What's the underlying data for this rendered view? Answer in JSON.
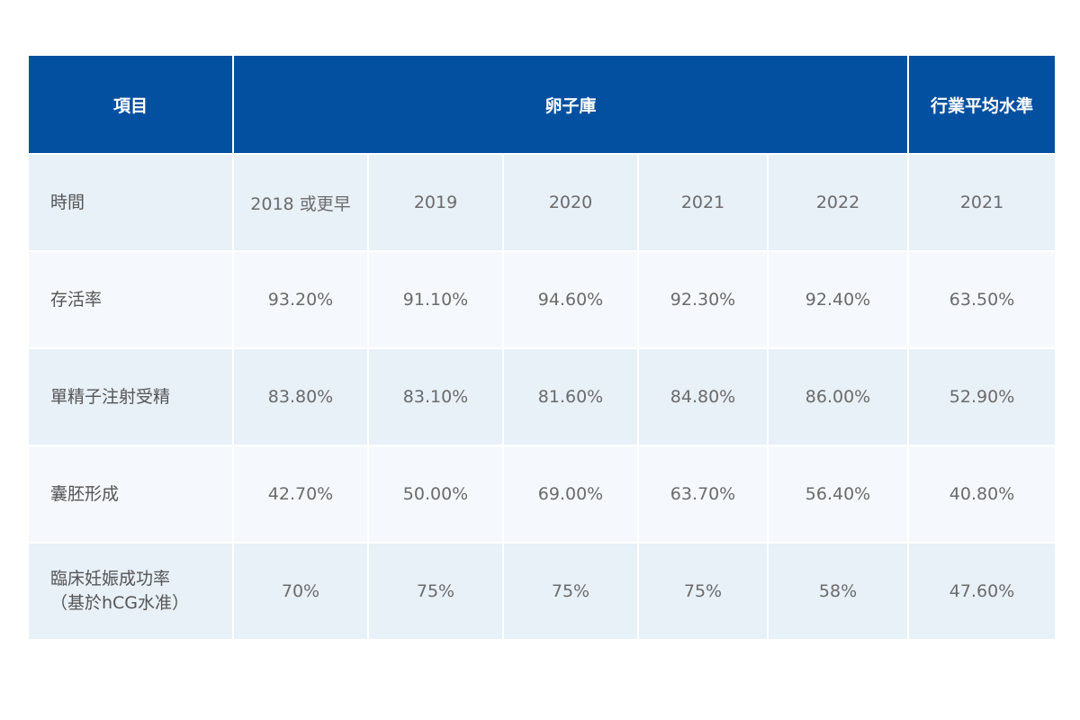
{
  "colors": {
    "header_bg": "#0450a0",
    "header_text": "#ffffff",
    "row_shade": "#e8f0f8",
    "row_light": "#f5f9fd",
    "cell_text": "#6b6b6b"
  },
  "chart_data": {
    "type": "table",
    "header": {
      "item": "項目",
      "egg_bank": "卵子庫",
      "industry_avg": "行業平均水準"
    },
    "time_row": {
      "label": "時間",
      "columns": [
        "2018 或更早",
        "2019",
        "2020",
        "2021",
        "2022",
        "2021"
      ]
    },
    "rows": [
      {
        "label": [
          "存活率"
        ],
        "values": [
          "93.20%",
          "91.10%",
          "94.60%",
          "92.30%",
          "92.40%",
          "63.50%"
        ]
      },
      {
        "label": [
          "單精子注射受精"
        ],
        "values": [
          "83.80%",
          "83.10%",
          "81.60%",
          "84.80%",
          "86.00%",
          "52.90%"
        ]
      },
      {
        "label": [
          "囊胚形成"
        ],
        "values": [
          "42.70%",
          "50.00%",
          "69.00%",
          "63.70%",
          "56.40%",
          "40.80%"
        ]
      },
      {
        "label": [
          "臨床妊娠成功率",
          "（基於hCG水准）"
        ],
        "values": [
          "70%",
          "75%",
          "75%",
          "75%",
          "58%",
          "47.60%"
        ]
      }
    ]
  }
}
